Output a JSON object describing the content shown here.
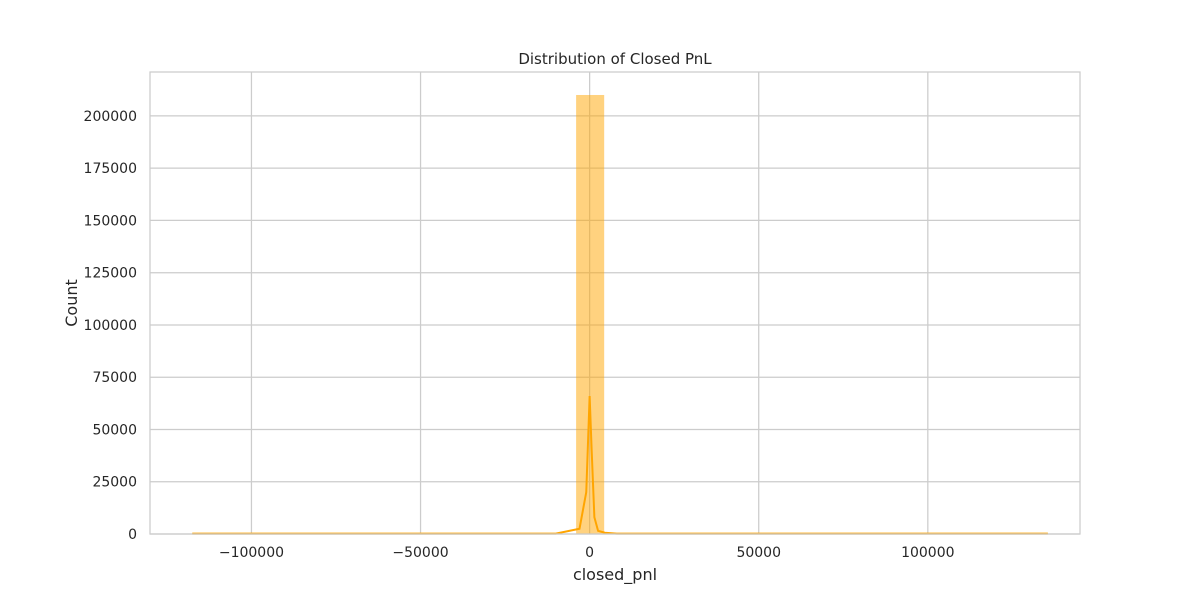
{
  "chart_data": {
    "type": "bar",
    "title": "Distribution of Closed PnL",
    "xlabel": "closed_pnl",
    "ylabel": "Count",
    "xlim": [
      -130000,
      145000
    ],
    "ylim": [
      0,
      221000
    ],
    "x_ticks": [
      -100000,
      -50000,
      0,
      50000,
      100000
    ],
    "x_tick_labels": [
      "−100000",
      "−50000",
      "0",
      "50000",
      "100000"
    ],
    "y_ticks": [
      0,
      25000,
      50000,
      75000,
      100000,
      125000,
      150000,
      175000,
      200000
    ],
    "y_tick_labels": [
      "0",
      "25000",
      "50000",
      "75000",
      "100000",
      "125000",
      "150000",
      "175000",
      "200000"
    ],
    "grid": true,
    "bar_color": "#ffa500",
    "bins": [
      {
        "x0": -117500,
        "x1": -112900,
        "count": 0
      },
      {
        "x0": -4000,
        "x1": 400,
        "count": 210000
      },
      {
        "x0": 400,
        "x1": 4300,
        "count": 210000
      },
      {
        "x0": 4300,
        "x1": 9000,
        "count": 300
      },
      {
        "x0": 131000,
        "x1": 135500,
        "count": 0
      }
    ],
    "kde": {
      "x": [
        -117500,
        -80000,
        -40000,
        -10000,
        -3000,
        -1000,
        0,
        600,
        1400,
        2500,
        4500,
        8000,
        20000,
        60000,
        100000,
        135500
      ],
      "y": [
        150,
        150,
        150,
        200,
        2500,
        20000,
        66000,
        40000,
        8000,
        1500,
        600,
        200,
        150,
        150,
        150,
        150
      ]
    }
  }
}
